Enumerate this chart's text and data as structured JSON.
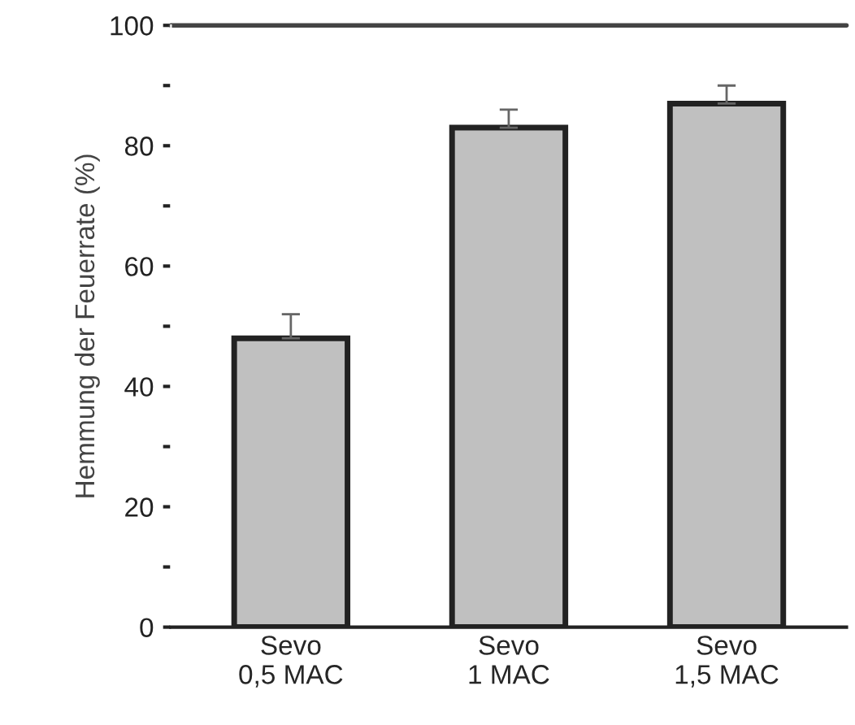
{
  "chart_data": {
    "type": "bar",
    "ylabel": "Hemmung der Feuerrate (%)",
    "categories": [
      "Sevo\n0,5 MAC",
      "Sevo\n1 MAC",
      "Sevo\n1,5 MAC"
    ],
    "values": [
      48,
      83,
      87
    ],
    "color": "#c0c0c0",
    "errors": [
      [
        48,
        52
      ],
      [
        83,
        86
      ],
      [
        87,
        90
      ]
    ],
    "ylim": [
      0,
      100
    ],
    "yticks": [
      0,
      {
        "value": 10,
        "label": null
      },
      20,
      {
        "value": 30,
        "label": null
      },
      40,
      {
        "value": 50,
        "label": null
      },
      60,
      {
        "value": 70,
        "label": null
      },
      80,
      {
        "value": 90,
        "label": null
      },
      100
    ],
    "ref_lines": [
      {
        "axis": "y",
        "value": 100,
        "label": null,
        "color": "#444444"
      }
    ],
    "grid": false,
    "legend": false
  }
}
